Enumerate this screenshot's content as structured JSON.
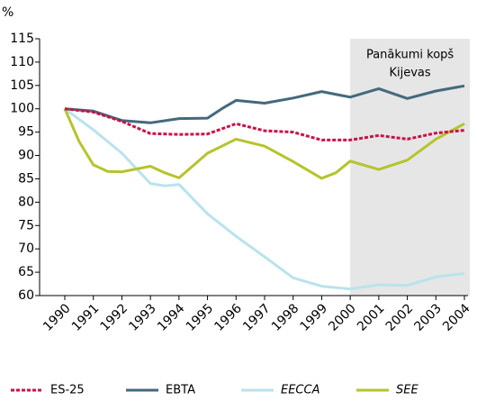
{
  "chart_data": {
    "type": "line",
    "y_unit": "%",
    "ylim": [
      60,
      115
    ],
    "yticks": [
      60,
      65,
      70,
      75,
      80,
      85,
      90,
      95,
      100,
      105,
      110,
      115
    ],
    "xlim": [
      1990,
      2004
    ],
    "xticks": [
      1990,
      1991,
      1992,
      1993,
      1994,
      1995,
      1996,
      1997,
      1998,
      1999,
      2000,
      2001,
      2002,
      2003,
      2004
    ],
    "highlight": {
      "x": [
        2000,
        2004
      ],
      "color": "#e6e6e6",
      "label": [
        "Panākumi kopš",
        "Kijevas"
      ]
    },
    "series": [
      {
        "name": "ES-25",
        "color": "#cc1144",
        "dashed": true,
        "italic": false,
        "x": [
          1990,
          1991,
          1992,
          1993,
          1994,
          1995,
          1996,
          1997,
          1998,
          1999,
          2000,
          2001,
          2002,
          2003,
          2004
        ],
        "values": [
          100,
          99.3,
          97.3,
          94.7,
          94.5,
          94.6,
          96.8,
          95.3,
          95.0,
          93.3,
          93.3,
          94.3,
          93.5,
          94.8,
          95.4
        ]
      },
      {
        "name": "EBTA",
        "color": "#44697d",
        "dashed": false,
        "italic": false,
        "x": [
          1990,
          1991,
          1992,
          1993,
          1994,
          1995,
          1995.5,
          1996,
          1997,
          1998,
          1999,
          2000,
          2001,
          2002,
          2003,
          2004
        ],
        "values": [
          100,
          99.5,
          97.5,
          97.0,
          97.9,
          98.0,
          100,
          101.8,
          101.2,
          102.3,
          103.7,
          102.5,
          104.3,
          102.2,
          103.8,
          104.9
        ]
      },
      {
        "name": "EECCA",
        "color": "#b9e3ec",
        "dashed": false,
        "italic": true,
        "x": [
          1990,
          1991,
          1992,
          1993,
          1993.5,
          1994,
          1995,
          1996,
          1997,
          1998,
          1999,
          2000,
          2001,
          2002,
          2003,
          2004
        ],
        "values": [
          100,
          95.5,
          90.5,
          84.0,
          83.5,
          83.8,
          77.5,
          72.7,
          68.3,
          63.8,
          62.0,
          61.4,
          62.3,
          62.2,
          64.0,
          64.7
        ]
      },
      {
        "name": "SEE",
        "color": "#b5c42c",
        "dashed": false,
        "italic": true,
        "x": [
          1990,
          1990.5,
          1991,
          1991.5,
          1992,
          1993,
          1993.5,
          1994,
          1995,
          1996,
          1997,
          1998,
          1999,
          1999.5,
          2000,
          2001,
          2002,
          2003,
          2004
        ],
        "values": [
          100,
          93,
          88,
          86.6,
          86.5,
          87.7,
          86.3,
          85.2,
          90.5,
          93.5,
          92.0,
          88.7,
          85.1,
          86.3,
          88.8,
          87.0,
          89.0,
          93.5,
          96.8
        ]
      }
    ]
  }
}
